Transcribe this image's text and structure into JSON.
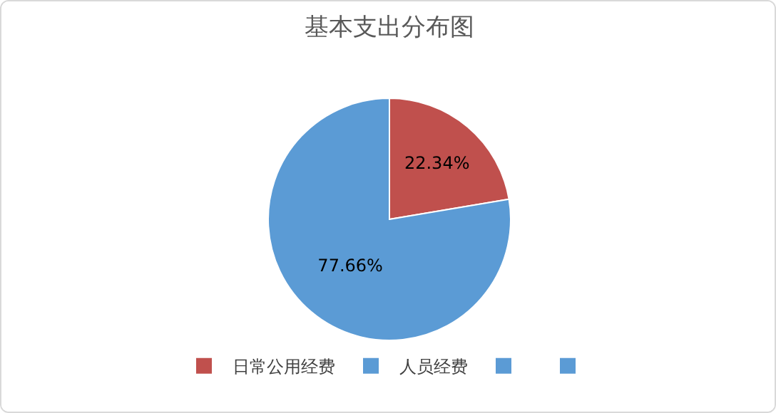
{
  "chart_data": {
    "type": "pie",
    "title": "基本支出分布图",
    "categories": [
      "日常公用经费",
      "人员经费",
      null,
      null
    ],
    "values": [
      22.34,
      77.66,
      0,
      0
    ],
    "value_labels": [
      "22.34%",
      "77.66%",
      null,
      null
    ],
    "colors": [
      "#c0504d",
      "#5b9bd5",
      "#5b9bd5",
      "#5b9bd5"
    ],
    "legend": "bottom"
  }
}
